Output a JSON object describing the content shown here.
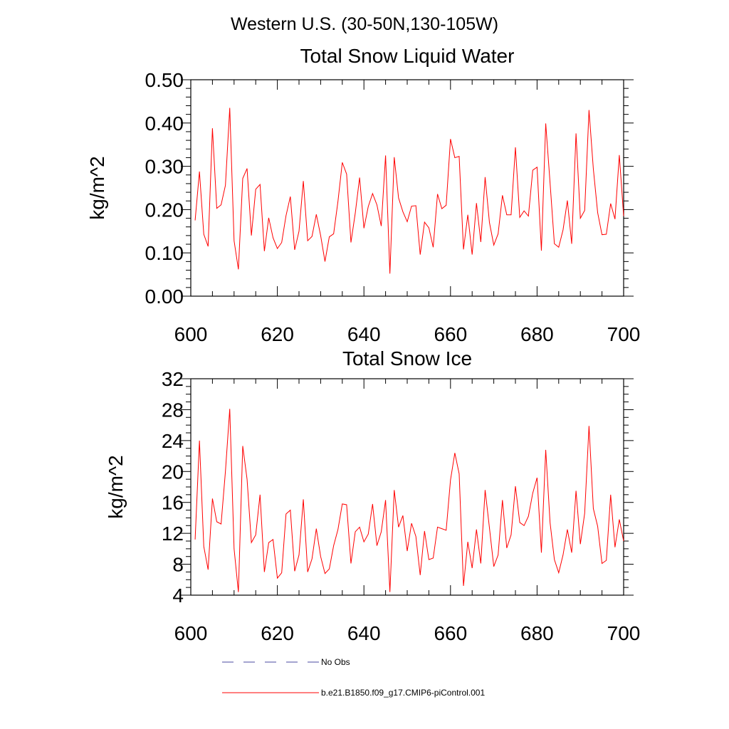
{
  "suptitle": "Western U.S. (30-50N,130-105W)",
  "legend": {
    "obs_label": "No Obs",
    "obs_color": "#4a4aa0",
    "model_label": "b.e21.B1850.f09_g17.CMIP6-piControl.001",
    "model_color": "#ff0000"
  },
  "chart_data": [
    {
      "type": "line",
      "title": "Total Snow Liquid Water",
      "xlabel": "",
      "ylabel": "kg/m^2",
      "xlim": [
        600,
        700
      ],
      "ylim": [
        0,
        0.5
      ],
      "x_ticks": [
        600,
        620,
        640,
        660,
        680,
        700
      ],
      "x_tick_labels": [
        "600",
        "620",
        "640",
        "660",
        "680",
        "700"
      ],
      "y_ticks": [
        0,
        0.1,
        0.2,
        0.3,
        0.4,
        0.5
      ],
      "y_tick_labels": [
        "0.00",
        "0.10",
        "0.20",
        "0.30",
        "0.40",
        "0.50"
      ],
      "x_start": 601,
      "series": [
        {
          "name": "b.e21.B1850.f09_g17.CMIP6-piControl.001",
          "color": "#ff0000",
          "values": [
            0.175,
            0.288,
            0.143,
            0.115,
            0.388,
            0.203,
            0.211,
            0.256,
            0.435,
            0.128,
            0.062,
            0.272,
            0.295,
            0.14,
            0.247,
            0.258,
            0.104,
            0.181,
            0.135,
            0.11,
            0.124,
            0.186,
            0.23,
            0.107,
            0.15,
            0.266,
            0.128,
            0.138,
            0.189,
            0.14,
            0.08,
            0.137,
            0.144,
            0.219,
            0.309,
            0.282,
            0.124,
            0.192,
            0.274,
            0.157,
            0.207,
            0.237,
            0.211,
            0.162,
            0.325,
            0.052,
            0.321,
            0.227,
            0.195,
            0.172,
            0.208,
            0.209,
            0.096,
            0.171,
            0.158,
            0.113,
            0.236,
            0.202,
            0.21,
            0.363,
            0.32,
            0.323,
            0.108,
            0.188,
            0.096,
            0.215,
            0.125,
            0.275,
            0.17,
            0.118,
            0.144,
            0.233,
            0.188,
            0.188,
            0.344,
            0.182,
            0.197,
            0.185,
            0.291,
            0.298,
            0.105,
            0.399,
            0.262,
            0.121,
            0.113,
            0.153,
            0.221,
            0.121,
            0.376,
            0.18,
            0.198,
            0.43,
            0.294,
            0.193,
            0.142,
            0.143,
            0.214,
            0.178,
            0.326,
            0.185
          ]
        }
      ]
    },
    {
      "type": "line",
      "title": "Total Snow Ice",
      "xlabel": "",
      "ylabel": "kg/m^2",
      "xlim": [
        600,
        700
      ],
      "ylim": [
        4,
        32
      ],
      "x_ticks": [
        600,
        620,
        640,
        660,
        680,
        700
      ],
      "x_tick_labels": [
        "600",
        "620",
        "640",
        "660",
        "680",
        "700"
      ],
      "y_ticks": [
        4,
        8,
        12,
        16,
        20,
        24,
        28,
        32
      ],
      "y_tick_labels": [
        "4",
        "8",
        "12",
        "16",
        "20",
        "24",
        "28",
        "32"
      ],
      "x_start": 601,
      "series": [
        {
          "name": "b.e21.B1850.f09_g17.CMIP6-piControl.001",
          "color": "#ff0000",
          "values": [
            11.2,
            24.0,
            10.3,
            7.3,
            16.5,
            13.5,
            13.2,
            20.0,
            28.1,
            10.0,
            4.4,
            23.3,
            19.0,
            10.8,
            11.8,
            17.0,
            7.0,
            10.8,
            11.2,
            6.2,
            6.9,
            14.5,
            15.0,
            7.1,
            9.2,
            16.4,
            7.0,
            8.7,
            12.6,
            9.0,
            6.8,
            7.4,
            10.4,
            12.5,
            15.8,
            15.7,
            8.1,
            12.2,
            12.8,
            10.9,
            11.9,
            15.8,
            10.4,
            12.2,
            16.3,
            4.4,
            17.6,
            12.8,
            14.3,
            9.7,
            13.3,
            11.6,
            6.6,
            12.3,
            8.6,
            8.8,
            12.8,
            12.6,
            12.4,
            18.9,
            22.4,
            19.7,
            5.2,
            10.9,
            7.5,
            12.5,
            8.1,
            17.6,
            12.7,
            7.7,
            9.2,
            16.3,
            10.1,
            11.8,
            18.1,
            13.4,
            13.0,
            14.2,
            17.2,
            19.2,
            9.5,
            22.8,
            13.4,
            8.6,
            6.9,
            9.2,
            12.5,
            9.5,
            17.5,
            10.6,
            14.6,
            25.9,
            15.2,
            12.9,
            8.1,
            8.5,
            17.0,
            10.2,
            13.8,
            11.0
          ]
        }
      ]
    }
  ]
}
